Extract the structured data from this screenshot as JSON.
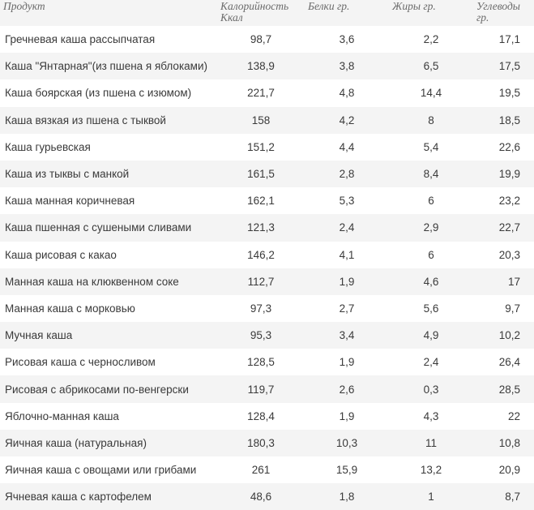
{
  "table": {
    "headers": {
      "product": "Продукт",
      "calories": "Калорийность Ккал",
      "protein": "Белки гр.",
      "fat": "Жиры гр.",
      "carbs": "Углеводы гр."
    },
    "rows": [
      {
        "name": "Гречневая каша рассыпчатая",
        "calories": "98,7",
        "protein": "3,6",
        "fat": "2,2",
        "carbs": "17,1"
      },
      {
        "name": "Каша \"Янтарная\"(из пшена я яблоками)",
        "calories": "138,9",
        "protein": "3,8",
        "fat": "6,5",
        "carbs": "17,5"
      },
      {
        "name": "Каша боярская (из пшена с изюмом)",
        "calories": "221,7",
        "protein": "4,8",
        "fat": "14,4",
        "carbs": "19,5"
      },
      {
        "name": "Каша вязкая из пшена с тыквой",
        "calories": "158",
        "protein": "4,2",
        "fat": "8",
        "carbs": "18,5"
      },
      {
        "name": "Каша гурьевская",
        "calories": "151,2",
        "protein": "4,4",
        "fat": "5,4",
        "carbs": "22,6"
      },
      {
        "name": "Каша из тыквы с манкой",
        "calories": "161,5",
        "protein": "2,8",
        "fat": "8,4",
        "carbs": "19,9"
      },
      {
        "name": "Каша манная коричневая",
        "calories": "162,1",
        "protein": "5,3",
        "fat": "6",
        "carbs": "23,2"
      },
      {
        "name": "Каша пшенная с сушеными сливами",
        "calories": "121,3",
        "protein": "2,4",
        "fat": "2,9",
        "carbs": "22,7"
      },
      {
        "name": "Каша рисовая с какао",
        "calories": "146,2",
        "protein": "4,1",
        "fat": "6",
        "carbs": "20,3"
      },
      {
        "name": "Манная каша на клюквенном соке",
        "calories": "112,7",
        "protein": "1,9",
        "fat": "4,6",
        "carbs": "17"
      },
      {
        "name": "Манная каша с морковью",
        "calories": "97,3",
        "protein": "2,7",
        "fat": "5,6",
        "carbs": "9,7"
      },
      {
        "name": "Мучная каша",
        "calories": "95,3",
        "protein": "3,4",
        "fat": "4,9",
        "carbs": "10,2"
      },
      {
        "name": "Рисовая каша с черносливом",
        "calories": "128,5",
        "protein": "1,9",
        "fat": "2,4",
        "carbs": "26,4"
      },
      {
        "name": "Рисовая с абрикосами по-венгерски",
        "calories": "119,7",
        "protein": "2,6",
        "fat": "0,3",
        "carbs": "28,5"
      },
      {
        "name": "Яблочно-манная каша",
        "calories": "128,4",
        "protein": "1,9",
        "fat": "4,3",
        "carbs": "22"
      },
      {
        "name": "Яичная каша (натуральная)",
        "calories": "180,3",
        "protein": "10,3",
        "fat": "11",
        "carbs": "10,8"
      },
      {
        "name": "Яичная каша с овощами или грибами",
        "calories": "261",
        "protein": "15,9",
        "fat": "13,2",
        "carbs": "20,9"
      },
      {
        "name": "Ячневая каша с картофелем",
        "calories": "48,6",
        "protein": "1,8",
        "fat": "1",
        "carbs": "8,7"
      }
    ]
  }
}
